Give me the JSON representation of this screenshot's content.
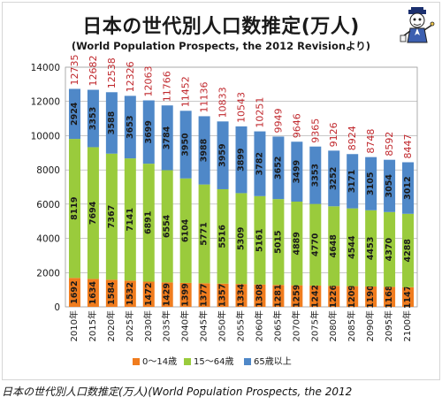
{
  "caption": "日本の世代別人口数推定(万人)(World Population Prospects, the 2012",
  "colors": {
    "age_0_14": "#f07c1e",
    "age_15_64": "#9acb3c",
    "age_65_plus": "#4f88c8",
    "total_label": "#c0282d",
    "segment_label": "#1a1a1a"
  },
  "chart_data": {
    "type": "bar",
    "stacked": true,
    "title": "日本の世代別人口数推定(万人)",
    "subtitle": "(World Population Prospects, the 2012 Revisionより)",
    "categories": [
      "2010年",
      "2015年",
      "2020年",
      "2025年",
      "2030年",
      "2035年",
      "2040年",
      "2045年",
      "2050年",
      "2055年",
      "2060年",
      "2065年",
      "2070年",
      "2075年",
      "2080年",
      "2085年",
      "2090年",
      "2095年",
      "2100年"
    ],
    "series": [
      {
        "name": "0～14歳",
        "values": [
          1692,
          1634,
          1584,
          1532,
          1472,
          1429,
          1399,
          1377,
          1357,
          1334,
          1308,
          1281,
          1259,
          1242,
          1226,
          1209,
          1190,
          1168,
          1147
        ]
      },
      {
        "name": "15～64歳",
        "values": [
          8119,
          7694,
          7367,
          7141,
          6891,
          6554,
          6104,
          5771,
          5516,
          5309,
          5161,
          5015,
          4889,
          4770,
          4648,
          4544,
          4453,
          4370,
          4288
        ]
      },
      {
        "name": "65歳以上",
        "values": [
          2924,
          3353,
          3588,
          3653,
          3699,
          3784,
          3950,
          3988,
          3959,
          3899,
          3782,
          3652,
          3499,
          3353,
          3252,
          3171,
          3105,
          3054,
          3012
        ]
      }
    ],
    "totals": [
      12735,
      12682,
      12538,
      12326,
      12063,
      11766,
      11452,
      11136,
      10833,
      10543,
      10251,
      9949,
      9646,
      9365,
      9126,
      8924,
      8748,
      8592,
      8447
    ],
    "yticks": [
      "0",
      "2000",
      "4000",
      "6000",
      "8000",
      "10000",
      "12000",
      "14000"
    ],
    "ylim": [
      0,
      14000
    ],
    "grid": true,
    "legend": "bottom"
  }
}
